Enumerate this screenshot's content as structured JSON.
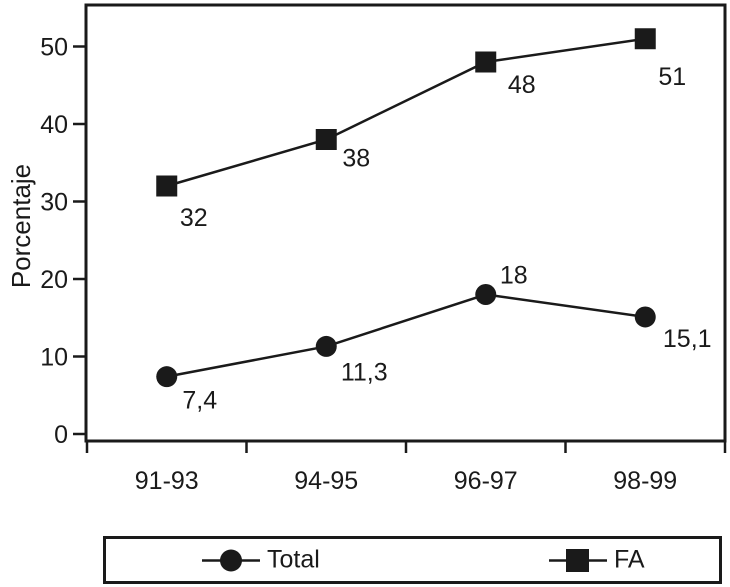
{
  "figure": {
    "background": "#ffffff",
    "ink_color": "#1a1a1a"
  },
  "chart_data": {
    "type": "line",
    "title": "",
    "xlabel": "",
    "ylabel": "Porcentaje",
    "categories": [
      "91-93",
      "94-95",
      "96-97",
      "98-99"
    ],
    "yticks": [
      0,
      10,
      20,
      30,
      40,
      50
    ],
    "ylim": [
      0,
      56
    ],
    "grid": false,
    "legend_position": "bottom-box",
    "series": [
      {
        "name": "Total",
        "marker": "circle",
        "color": "#1a1a1a",
        "values": [
          7.4,
          11.3,
          18,
          15.1
        ],
        "point_labels": [
          "7,4",
          "11,3",
          "18",
          "15,1"
        ],
        "label_offsets": [
          [
            33,
            23
          ],
          [
            38,
            25
          ],
          [
            28,
            -20
          ],
          [
            42,
            21
          ]
        ]
      },
      {
        "name": "FA",
        "marker": "square",
        "color": "#1a1a1a",
        "values": [
          32,
          38,
          48,
          51
        ],
        "point_labels": [
          "32",
          "38",
          "48",
          "51"
        ],
        "label_offsets": [
          [
            27,
            31
          ],
          [
            30,
            18
          ],
          [
            36,
            22
          ],
          [
            27,
            37
          ]
        ]
      }
    ]
  }
}
